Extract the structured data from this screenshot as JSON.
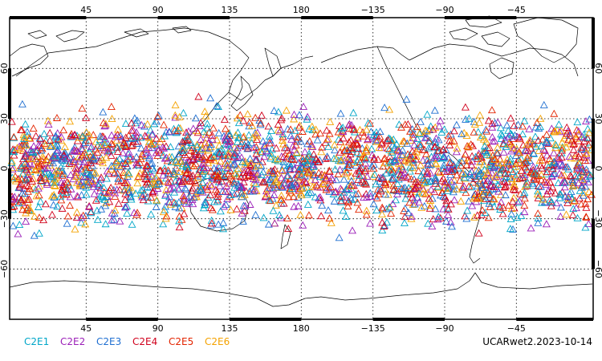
{
  "map": {
    "top_axis_labels": [
      "45",
      "90",
      "135",
      "180",
      "−135",
      "−90",
      "−45"
    ],
    "bottom_axis_labels": [
      "45",
      "90",
      "135",
      "180",
      "−135",
      "−90",
      "−45"
    ],
    "left_axis_labels": [
      "60",
      "30",
      "0",
      "−30",
      "−60"
    ],
    "right_axis_labels": [
      "60",
      "30",
      "0",
      "−30",
      "−60"
    ],
    "grid": "dotted",
    "projection": "cylindrical-equidistant, centered 180",
    "lat_range": [
      -90,
      90
    ],
    "lon_range": [
      0,
      360
    ],
    "marker_shape": "open-triangle",
    "observation_lat_band": [
      -45,
      45
    ],
    "coastline_color": "#000000"
  },
  "legend": {
    "items": [
      {
        "label": "C2E1",
        "color": "#00a6c8"
      },
      {
        "label": "C2E2",
        "color": "#9b1fb8"
      },
      {
        "label": "C2E3",
        "color": "#1f6fd1"
      },
      {
        "label": "C2E4",
        "color": "#d0001c"
      },
      {
        "label": "C2E5",
        "color": "#e32400"
      },
      {
        "label": "C2E6",
        "color": "#f4a200"
      }
    ]
  },
  "caption": "UCARwet2.2023-10-14"
}
